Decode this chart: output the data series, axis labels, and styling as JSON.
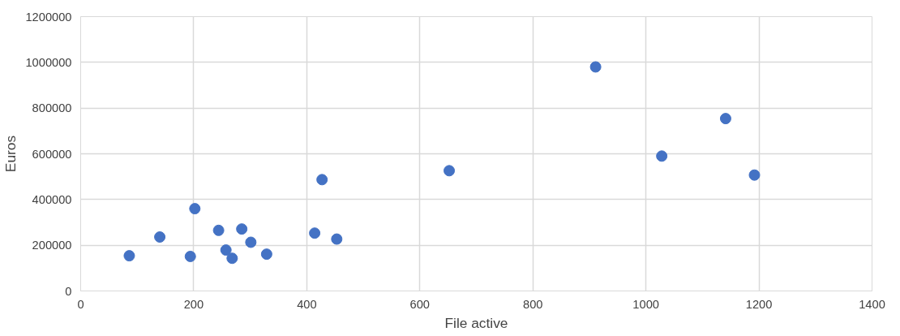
{
  "chart_data": {
    "type": "scatter",
    "xlabel": "File active",
    "ylabel": "Euros",
    "x": [
      86,
      140,
      202,
      194,
      244,
      257,
      268,
      285,
      301,
      329,
      414,
      427,
      453,
      652,
      911,
      1028,
      1141,
      1192
    ],
    "series": [
      {
        "color": "#4472c4",
        "values": [
          154000,
          236000,
          360000,
          151000,
          265000,
          179000,
          143000,
          271000,
          213000,
          161000,
          253000,
          487000,
          227000,
          526000,
          980000,
          590000,
          754000,
          507000
        ]
      }
    ],
    "xlim": [
      0,
      1400
    ],
    "xticks": [
      0,
      200,
      400,
      600,
      800,
      1000,
      1200,
      1400
    ],
    "ylim": [
      0,
      1200000
    ],
    "yticks": [
      0,
      200000,
      400000,
      600000,
      800000,
      1000000,
      1200000
    ],
    "grid": true,
    "marker": "circle"
  }
}
